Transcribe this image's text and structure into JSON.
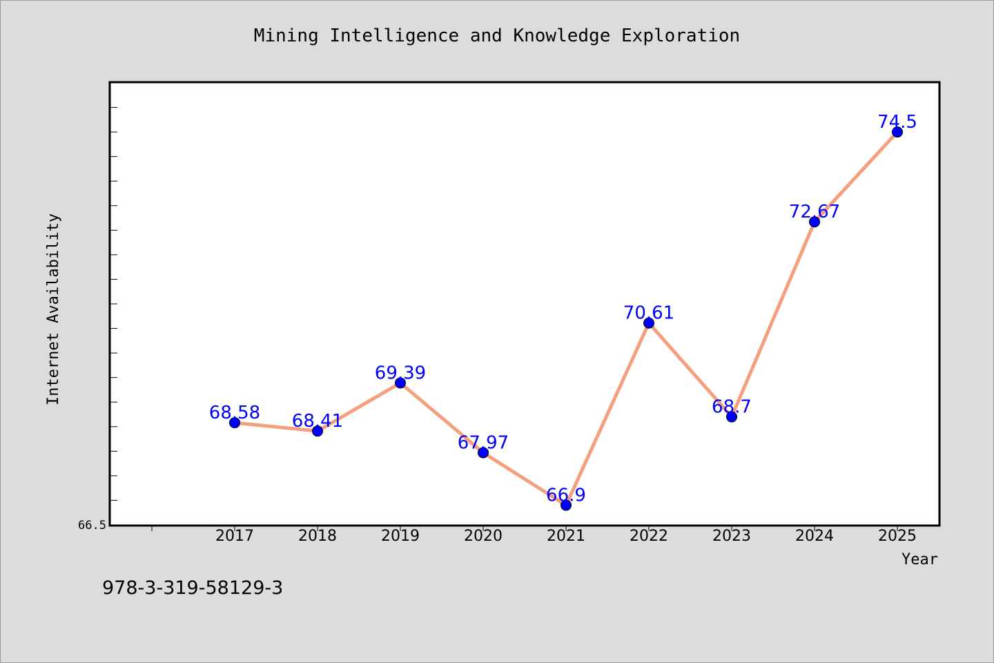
{
  "chart_data": {
    "type": "line",
    "title": "Mining Intelligence and Knowledge Exploration",
    "xlabel": "Year",
    "ylabel": "Internet Availability",
    "x": [
      "2017",
      "2018",
      "2019",
      "2020",
      "2021",
      "2022",
      "2023",
      "2024",
      "2025"
    ],
    "series": [
      {
        "values": [
          68.58,
          68.41,
          69.39,
          67.97,
          66.9,
          70.61,
          68.7,
          72.67,
          74.5
        ],
        "labels": [
          "68.58",
          "68.41",
          "69.39",
          "67.97",
          "66.9",
          "70.61",
          "68.7",
          "72.67",
          "74.5"
        ]
      }
    ],
    "ylim": [
      66.5,
      75.5
    ],
    "y_tick_label": "66.5",
    "grid": false,
    "line_color": "#f4a07f",
    "marker_color": "#0000ff",
    "label_color": "#0000ff"
  },
  "footer": {
    "isbn": "978-3-319-58129-3"
  }
}
